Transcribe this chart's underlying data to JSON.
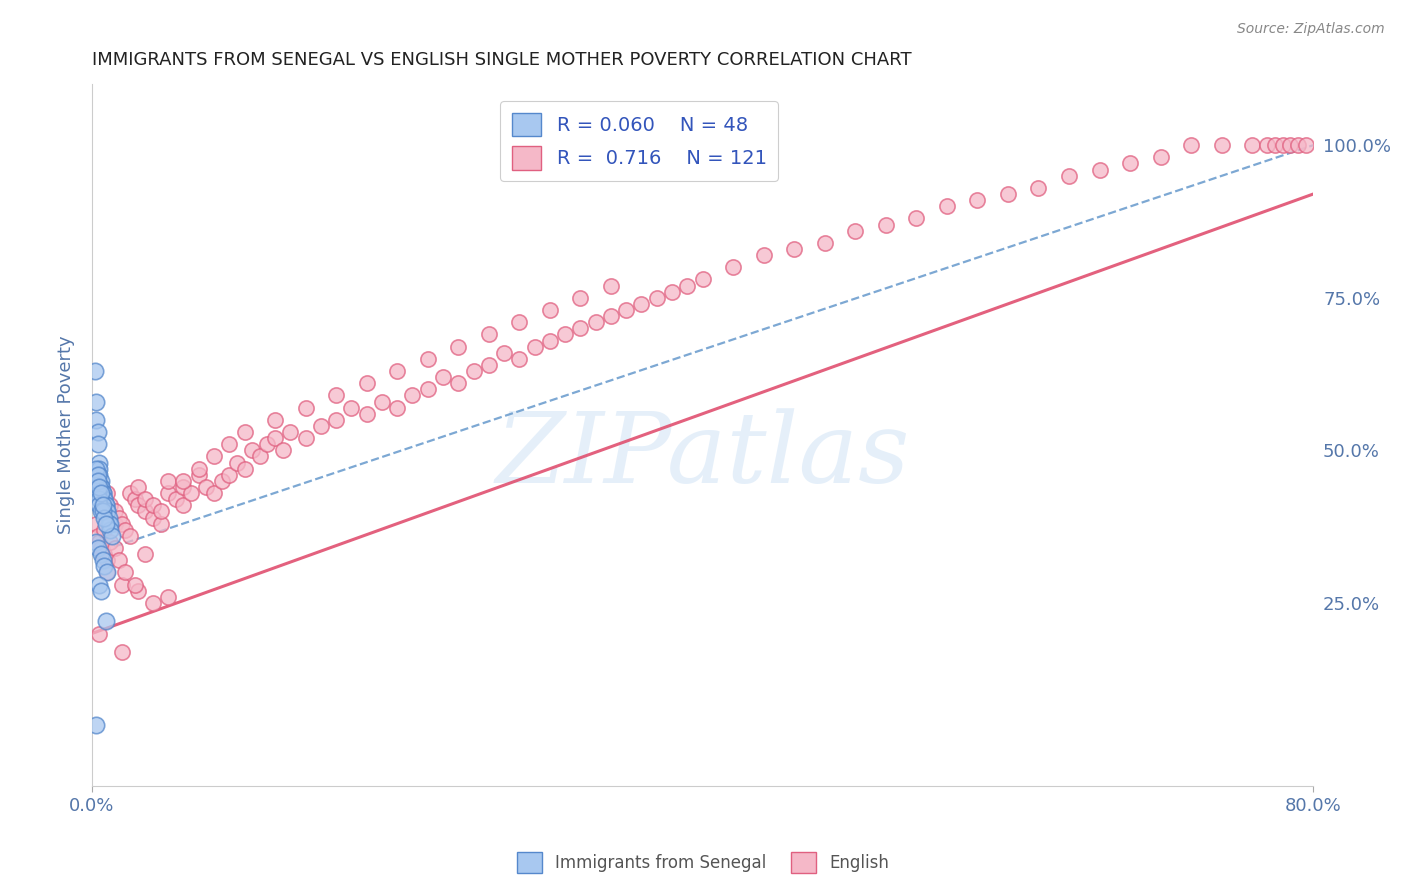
{
  "title": "IMMIGRANTS FROM SENEGAL VS ENGLISH SINGLE MOTHER POVERTY CORRELATION CHART",
  "source_text": "Source: ZipAtlas.com",
  "ylabel": "Single Mother Poverty",
  "legend_label_blue": "Immigrants from Senegal",
  "legend_label_pink": "English",
  "R_blue": 0.06,
  "N_blue": 48,
  "R_pink": 0.716,
  "N_pink": 121,
  "xlim": [
    0.0,
    0.8
  ],
  "ylim": [
    -0.05,
    1.1
  ],
  "right_yticks": [
    0.25,
    0.5,
    0.75,
    1.0
  ],
  "right_yticklabels": [
    "25.0%",
    "50.0%",
    "75.0%",
    "100.0%"
  ],
  "watermark": "ZIPatlas",
  "blue_fill": "#A8C8F0",
  "blue_edge": "#5588CC",
  "pink_fill": "#F5B8C8",
  "pink_edge": "#E06080",
  "blue_trend_color": "#6699CC",
  "pink_trend_color": "#E05070",
  "legend_R_color": "#3355BB",
  "legend_N_color": "#3355BB",
  "title_color": "#222222",
  "axis_label_color": "#5577AA",
  "background_color": "#FFFFFF",
  "grid_color": "#CCCCCC",
  "blue_scatter_x": [
    0.002,
    0.003,
    0.003,
    0.004,
    0.004,
    0.005,
    0.005,
    0.005,
    0.006,
    0.006,
    0.006,
    0.007,
    0.007,
    0.008,
    0.008,
    0.009,
    0.009,
    0.01,
    0.01,
    0.011,
    0.011,
    0.012,
    0.012,
    0.013,
    0.003,
    0.004,
    0.005,
    0.005,
    0.006,
    0.007,
    0.008,
    0.009,
    0.003,
    0.004,
    0.004,
    0.005,
    0.006,
    0.007,
    0.003,
    0.004,
    0.006,
    0.007,
    0.008,
    0.01,
    0.005,
    0.006,
    0.009,
    0.003
  ],
  "blue_scatter_y": [
    0.63,
    0.58,
    0.55,
    0.53,
    0.51,
    0.48,
    0.47,
    0.46,
    0.45,
    0.44,
    0.44,
    0.43,
    0.43,
    0.42,
    0.42,
    0.41,
    0.41,
    0.4,
    0.4,
    0.39,
    0.38,
    0.38,
    0.37,
    0.36,
    0.44,
    0.43,
    0.42,
    0.41,
    0.4,
    0.4,
    0.39,
    0.38,
    0.47,
    0.46,
    0.45,
    0.44,
    0.43,
    0.41,
    0.35,
    0.34,
    0.33,
    0.32,
    0.31,
    0.3,
    0.28,
    0.27,
    0.22,
    0.05
  ],
  "pink_scatter_x": [
    0.003,
    0.004,
    0.005,
    0.006,
    0.007,
    0.008,
    0.01,
    0.01,
    0.012,
    0.015,
    0.015,
    0.018,
    0.02,
    0.022,
    0.025,
    0.025,
    0.028,
    0.03,
    0.03,
    0.035,
    0.035,
    0.04,
    0.04,
    0.045,
    0.045,
    0.05,
    0.05,
    0.055,
    0.06,
    0.06,
    0.065,
    0.07,
    0.075,
    0.08,
    0.085,
    0.09,
    0.095,
    0.1,
    0.105,
    0.11,
    0.115,
    0.12,
    0.125,
    0.13,
    0.14,
    0.15,
    0.16,
    0.17,
    0.18,
    0.19,
    0.2,
    0.21,
    0.22,
    0.23,
    0.24,
    0.25,
    0.26,
    0.27,
    0.28,
    0.29,
    0.3,
    0.31,
    0.32,
    0.33,
    0.34,
    0.35,
    0.36,
    0.37,
    0.38,
    0.39,
    0.4,
    0.42,
    0.44,
    0.46,
    0.48,
    0.5,
    0.52,
    0.54,
    0.56,
    0.58,
    0.6,
    0.62,
    0.64,
    0.66,
    0.68,
    0.7,
    0.72,
    0.74,
    0.76,
    0.77,
    0.775,
    0.78,
    0.785,
    0.79,
    0.795,
    0.01,
    0.02,
    0.03,
    0.04,
    0.05,
    0.06,
    0.07,
    0.08,
    0.09,
    0.1,
    0.12,
    0.14,
    0.16,
    0.18,
    0.2,
    0.22,
    0.24,
    0.26,
    0.28,
    0.3,
    0.32,
    0.34,
    0.02,
    0.035,
    0.005,
    0.008,
    0.012,
    0.015,
    0.018,
    0.022,
    0.028
  ],
  "pink_scatter_y": [
    0.38,
    0.36,
    0.35,
    0.34,
    0.33,
    0.33,
    0.32,
    0.43,
    0.41,
    0.4,
    0.38,
    0.39,
    0.38,
    0.37,
    0.36,
    0.43,
    0.42,
    0.41,
    0.44,
    0.4,
    0.42,
    0.39,
    0.41,
    0.38,
    0.4,
    0.43,
    0.45,
    0.42,
    0.44,
    0.41,
    0.43,
    0.46,
    0.44,
    0.43,
    0.45,
    0.46,
    0.48,
    0.47,
    0.5,
    0.49,
    0.51,
    0.52,
    0.5,
    0.53,
    0.52,
    0.54,
    0.55,
    0.57,
    0.56,
    0.58,
    0.57,
    0.59,
    0.6,
    0.62,
    0.61,
    0.63,
    0.64,
    0.66,
    0.65,
    0.67,
    0.68,
    0.69,
    0.7,
    0.71,
    0.72,
    0.73,
    0.74,
    0.75,
    0.76,
    0.77,
    0.78,
    0.8,
    0.82,
    0.83,
    0.84,
    0.86,
    0.87,
    0.88,
    0.9,
    0.91,
    0.92,
    0.93,
    0.95,
    0.96,
    0.97,
    0.98,
    1.0,
    1.0,
    1.0,
    1.0,
    1.0,
    1.0,
    1.0,
    1.0,
    1.0,
    0.3,
    0.28,
    0.27,
    0.25,
    0.26,
    0.45,
    0.47,
    0.49,
    0.51,
    0.53,
    0.55,
    0.57,
    0.59,
    0.61,
    0.63,
    0.65,
    0.67,
    0.69,
    0.71,
    0.73,
    0.75,
    0.77,
    0.17,
    0.33,
    0.2,
    0.37,
    0.35,
    0.34,
    0.32,
    0.3,
    0.28
  ],
  "blue_trend_x": [
    0.0,
    0.8
  ],
  "blue_trend_y": [
    0.33,
    1.0
  ],
  "pink_trend_x": [
    0.0,
    0.8
  ],
  "pink_trend_y": [
    0.2,
    0.92
  ]
}
